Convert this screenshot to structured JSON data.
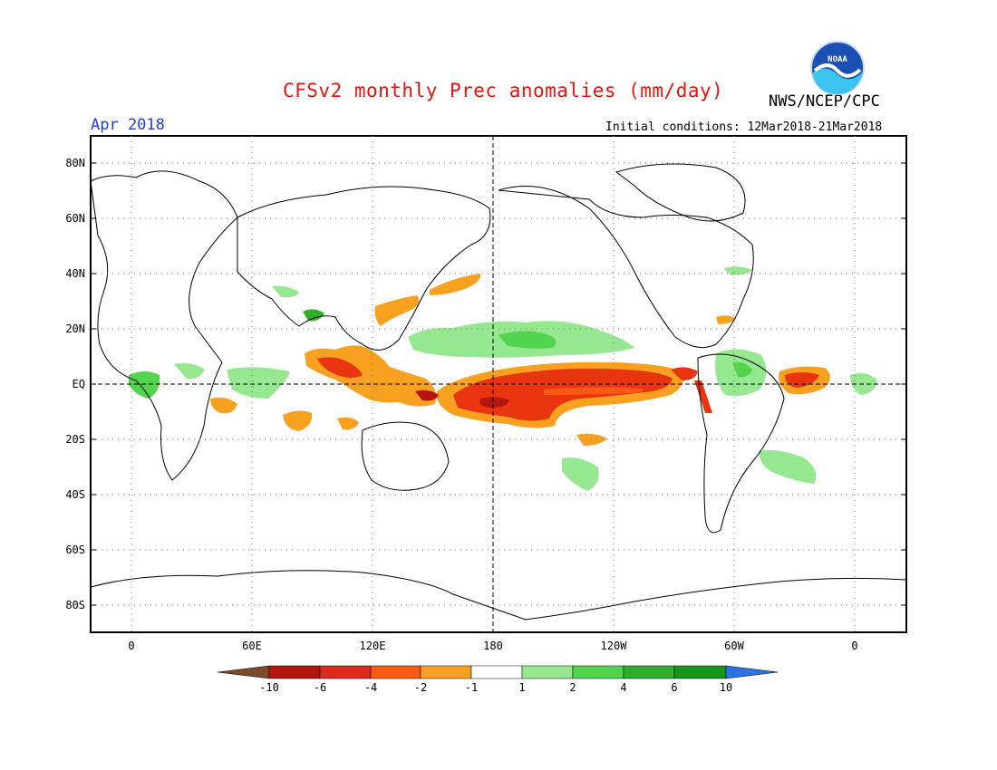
{
  "header": {
    "title": "CFSv2 monthly Prec anomalies (mm/day)",
    "org": "NWS/NCEP/CPC",
    "month": "Apr 2018",
    "initial_conditions": "Initial conditions: 12Mar2018-21Mar2018",
    "logo_text": "NOAA"
  },
  "axes": {
    "lat_labels": [
      "80N",
      "60N",
      "40N",
      "20N",
      "EQ",
      "20S",
      "40S",
      "60S",
      "80S"
    ],
    "lon_labels": [
      "0",
      "60E",
      "120E",
      "180",
      "120W",
      "60W",
      "0"
    ]
  },
  "colorbar": {
    "labels": [
      "-10",
      "-6",
      "-4",
      "-2",
      "-1",
      "1",
      "2",
      "4",
      "6",
      "10"
    ],
    "colors": [
      "#7a4a2a",
      "#b5150f",
      "#dc2a1c",
      "#fa5a14",
      "#f8a020",
      "#ffffff",
      "#96e890",
      "#52d44e",
      "#2fae2c",
      "#17951a",
      "#2a72e6"
    ]
  },
  "colors": {
    "deep_red": "#b5150f",
    "red": "#e8340f",
    "orange": "#f8a020",
    "light_green": "#96e890",
    "green": "#52d44e",
    "dark_green": "#2fae2c"
  }
}
